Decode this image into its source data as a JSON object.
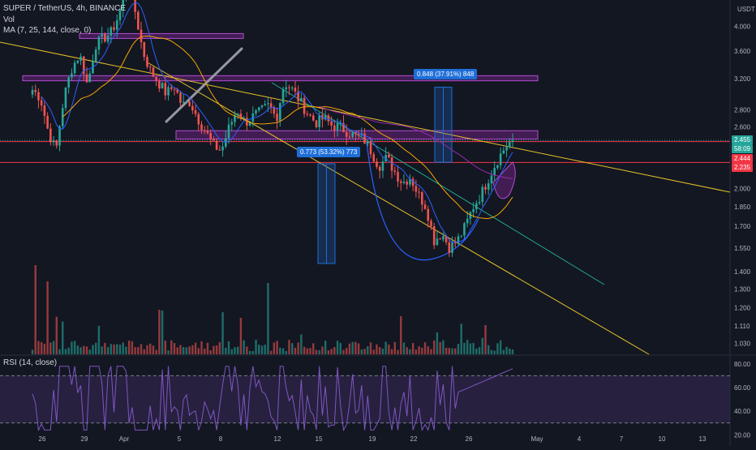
{
  "header": {
    "symbol": "SUPER / TetherUS, 4h, BINANCE",
    "vol_label": "Vol",
    "ma_label": "MA (7, 25, 144, close, 0)",
    "rsi_label": "RSI (14, close)",
    "currency": "USDT"
  },
  "colors": {
    "background": "#131722",
    "up": "#26a69a",
    "down": "#ef5350",
    "ma7": "#2962ff",
    "ma25": "#f7a600",
    "ma144": "#9c27b0",
    "trendline_yellow": "#e6c229",
    "trendline_teal": "#22ab94",
    "zone_purple": "#9c27b0",
    "support_red": "#f23645",
    "measure_blue": "#1e6ed8",
    "rsi_line": "#7e57c2"
  },
  "labels": {
    "price_last": "2.455",
    "countdown": "58:09",
    "red_line_1": "2.444",
    "red_line_2": "2.235",
    "measure_1": "0.773 (53.32%) 773",
    "measure_2": "0.848 (37.91%) 848"
  },
  "chart_data": {
    "type": "candlestick",
    "title": "SUPER / TetherUS, 4h, BINANCE",
    "y_scale": "log",
    "price_ticks": [
      4.0,
      3.6,
      3.2,
      2.8,
      2.6,
      2.2,
      2.0,
      1.85,
      1.7,
      1.55,
      1.4,
      1.3,
      1.2,
      1.11,
      1.03
    ],
    "price_tick_labels": [
      "4.000",
      "3.600",
      "3.200",
      "2.800",
      "2.600",
      "2.200",
      "2.000",
      "1.850",
      "1.700",
      "1.550",
      "1.400",
      "1.300",
      "1.200",
      "1.110",
      "1.030"
    ],
    "x_ticks": [
      "26",
      "29",
      "Apr",
      "5",
      "8",
      "12",
      "15",
      "19",
      "22",
      "26",
      "May",
      "4",
      "7",
      "10",
      "13"
    ],
    "rsi_ticks": [
      80.0,
      60.0,
      40.0,
      20.0
    ],
    "rsi_tick_labels": [
      "80.00",
      "60.00",
      "40.00",
      "20.00"
    ],
    "rsi_bands": [
      70,
      30
    ],
    "key_prices": {
      "last": 2.455,
      "line_upper": 2.444,
      "line_lower": 2.235
    },
    "zones": [
      {
        "name": "zone-1",
        "low": 3.8,
        "high": 3.88
      },
      {
        "name": "zone-2",
        "low": 3.17,
        "high": 3.24
      },
      {
        "name": "zone-3",
        "low": 2.47,
        "high": 2.56
      }
    ],
    "measurements": [
      {
        "label": "0.773 (53.32%) 773",
        "from": 1.45,
        "to": 2.222
      },
      {
        "label": "0.848 (37.91%) 848",
        "from": 2.237,
        "to": 3.085
      }
    ],
    "path_checkpoints": [
      3.05,
      2.95,
      2.55,
      2.35,
      2.95,
      3.35,
      3.55,
      3.1,
      3.7,
      3.8,
      3.9,
      4.2,
      4.8,
      4.3,
      3.6,
      3.3,
      3.15,
      3.0,
      3.1,
      2.85,
      2.9,
      2.7,
      2.55,
      2.4,
      2.35,
      2.6,
      2.8,
      2.65,
      2.72,
      2.78,
      2.85,
      2.7,
      3.15,
      3.05,
      2.9,
      2.75,
      2.65,
      2.7,
      2.62,
      2.6,
      2.55,
      2.5,
      2.48,
      2.35,
      2.2,
      2.28,
      2.15,
      2.05,
      2.1,
      1.95,
      1.85,
      1.6,
      1.65,
      1.55,
      1.6,
      1.7,
      1.85,
      1.95,
      2.1,
      2.25,
      2.38,
      2.47
    ]
  }
}
